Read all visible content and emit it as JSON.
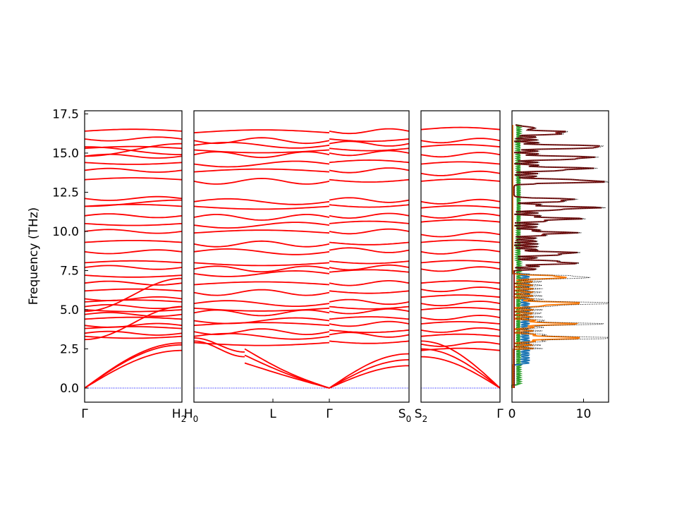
{
  "chart_data": {
    "type": "line",
    "ylabel": "Frequency (THz)",
    "ylim": [
      -0.9,
      17.7
    ],
    "yticks": [
      "0.0",
      "2.5",
      "5.0",
      "7.5",
      "10.0",
      "12.5",
      "15.0",
      "17.5"
    ],
    "ytick_values": [
      0,
      2.5,
      5,
      7.5,
      10,
      12.5,
      15,
      17.5
    ],
    "band_color": "#ff0000",
    "zero_line_color": "#0000ff",
    "segments": [
      {
        "id": "seg1",
        "start": "Γ",
        "end": "H",
        "end_sub": "2"
      },
      {
        "id": "seg2",
        "start": "H",
        "start_sub": "0",
        "mid": "L",
        "end": "S",
        "end_sub": "0",
        "gamma_inside": "Γ"
      },
      {
        "id": "seg3",
        "start": "S",
        "start_sub": "2",
        "end": "Γ"
      }
    ],
    "band_levels": {
      "seg1": {
        "acoustic_top": [
          2.4,
          2.9,
          3.2
        ],
        "flat": [
          3.3,
          3.5,
          3.8,
          4.0,
          4.4,
          4.7,
          5.0,
          5.2,
          5.5,
          5.7,
          6.2,
          6.7,
          7.2,
          7.7,
          8.0,
          8.7,
          9.3,
          10.0,
          10.5,
          11.0,
          11.6,
          12.1,
          13.3,
          13.9,
          14.4,
          14.8,
          15.3,
          15.9,
          16.4
        ],
        "crossing": [
          [
            4.9,
            7.0
          ],
          [
            3.1,
            5.2
          ],
          [
            14.8,
            15.6
          ],
          [
            15.4,
            14.9
          ],
          [
            11.6,
            12.0
          ]
        ]
      },
      "seg2": {
        "flat": [
          2.9,
          3.3,
          3.6,
          4.0,
          4.3,
          4.8,
          5.1,
          5.4,
          6.1,
          6.6,
          7.3,
          7.6,
          8.0,
          8.7,
          9.2,
          9.9,
          10.4,
          10.9,
          11.6,
          11.9,
          13.2,
          13.8,
          14.3,
          14.9,
          15.2,
          15.5,
          15.8,
          16.3
        ]
      },
      "seg3": {
        "flat": [
          2.4,
          2.8,
          3.3,
          3.7,
          4.1,
          4.5,
          5.0,
          5.4,
          5.8,
          6.3,
          6.7,
          7.6,
          8.0,
          8.7,
          9.3,
          9.8,
          10.6,
          11.0,
          11.5,
          11.9,
          13.2,
          13.7,
          14.3,
          14.9,
          15.4,
          15.8,
          16.5
        ]
      }
    },
    "dos": {
      "xticks": [
        "0",
        "10"
      ],
      "xtick_values": [
        0,
        10
      ],
      "xlim": [
        0,
        13.5
      ],
      "series_colors": [
        "#1f77b4",
        "#ff7f0e",
        "#2ca02c",
        "#8c1a1a"
      ],
      "total_color": "#000000"
    }
  }
}
